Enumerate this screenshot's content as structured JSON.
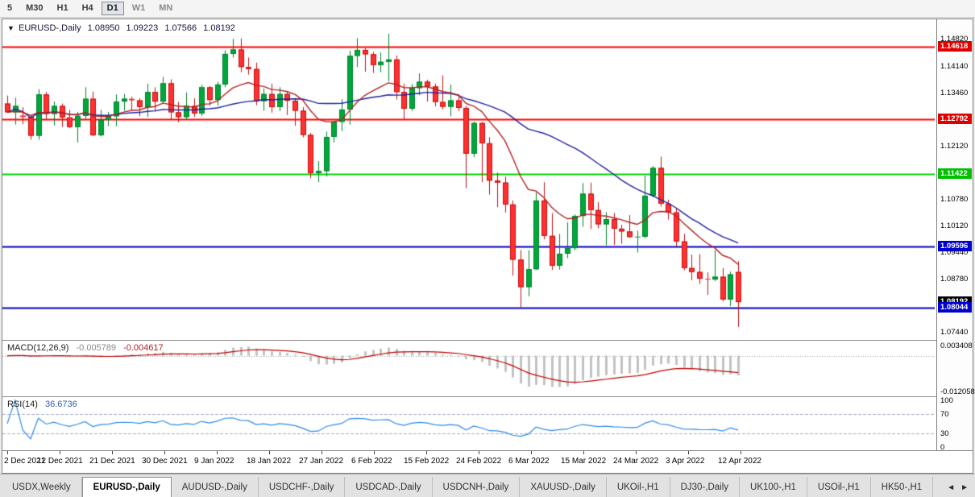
{
  "toolbar": {
    "timeframes": [
      {
        "label": "5",
        "active": false,
        "muted": false
      },
      {
        "label": "M30",
        "active": false,
        "muted": false
      },
      {
        "label": "H1",
        "active": false,
        "muted": false
      },
      {
        "label": "H4",
        "active": false,
        "muted": false
      },
      {
        "label": "D1",
        "active": true,
        "muted": false
      },
      {
        "label": "W1",
        "active": false,
        "muted": true
      },
      {
        "label": "MN",
        "active": false,
        "muted": true
      }
    ]
  },
  "chart": {
    "title": {
      "marker": "▼",
      "symbol": "EURUSD-,Daily",
      "open": "1.08950",
      "high": "1.09223",
      "low": "1.07566",
      "close": "1.08192"
    },
    "macd_label": {
      "name": "MACD(12,26,9)",
      "value": "-0.005789",
      "signal": "-0.004617"
    },
    "rsi_label": {
      "name": "RSI(14)",
      "value": "36.6736"
    }
  },
  "chart_data": {
    "type": "candlestick",
    "symbol": "EURUSD",
    "timeframe": "Daily",
    "current_bar": {
      "open": 1.0895,
      "high": 1.09223,
      "low": 1.07566,
      "close": 1.08192
    },
    "ylim": [
      1.0724,
      1.1531
    ],
    "candles": [
      [
        1.1319,
        1.1339,
        1.1295,
        1.1297
      ],
      [
        1.1297,
        1.1334,
        1.1266,
        1.1313
      ],
      [
        1.1289,
        1.131,
        1.1267,
        1.1285
      ],
      [
        1.1285,
        1.129,
        1.1228,
        1.1238
      ],
      [
        1.1238,
        1.1355,
        1.1228,
        1.1342
      ],
      [
        1.1342,
        1.1348,
        1.128,
        1.1293
      ],
      [
        1.1293,
        1.1324,
        1.1264,
        1.1313
      ],
      [
        1.1313,
        1.1319,
        1.126,
        1.1284
      ],
      [
        1.1284,
        1.1303,
        1.1257,
        1.126
      ],
      [
        1.126,
        1.1298,
        1.1221,
        1.1288
      ],
      [
        1.1288,
        1.136,
        1.128,
        1.1331
      ],
      [
        1.1331,
        1.1349,
        1.1237,
        1.1239
      ],
      [
        1.1239,
        1.1303,
        1.1236,
        1.1278
      ],
      [
        1.1278,
        1.1298,
        1.1262,
        1.1287
      ],
      [
        1.1287,
        1.1342,
        1.1262,
        1.1324
      ],
      [
        1.1324,
        1.1343,
        1.1301,
        1.1331
      ],
      [
        1.1331,
        1.1336,
        1.1302,
        1.1327
      ],
      [
        1.1327,
        1.1332,
        1.1287,
        1.131
      ],
      [
        1.131,
        1.1369,
        1.1285,
        1.1348
      ],
      [
        1.1348,
        1.136,
        1.1299,
        1.1324
      ],
      [
        1.1324,
        1.1386,
        1.1321,
        1.137
      ],
      [
        1.137,
        1.138,
        1.1279,
        1.1297
      ],
      [
        1.1297,
        1.1323,
        1.1272,
        1.1285
      ],
      [
        1.1285,
        1.1347,
        1.128,
        1.1313
      ],
      [
        1.1313,
        1.1332,
        1.1285,
        1.1294
      ],
      [
        1.1294,
        1.1366,
        1.1288,
        1.136
      ],
      [
        1.136,
        1.1363,
        1.1314,
        1.1328
      ],
      [
        1.1328,
        1.1374,
        1.1314,
        1.1367
      ],
      [
        1.1367,
        1.1453,
        1.136,
        1.1444
      ],
      [
        1.1444,
        1.1482,
        1.1435,
        1.1455
      ],
      [
        1.1455,
        1.1483,
        1.1398,
        1.1411
      ],
      [
        1.1411,
        1.1435,
        1.1392,
        1.1406
      ],
      [
        1.1406,
        1.1422,
        1.1315,
        1.1325
      ],
      [
        1.1325,
        1.1357,
        1.1301,
        1.1343
      ],
      [
        1.1343,
        1.1369,
        1.1296,
        1.131
      ],
      [
        1.131,
        1.136,
        1.13,
        1.1343
      ],
      [
        1.1343,
        1.1349,
        1.129,
        1.1326
      ],
      [
        1.1326,
        1.1333,
        1.1263,
        1.1301
      ],
      [
        1.1301,
        1.131,
        1.1234,
        1.124
      ],
      [
        1.124,
        1.1245,
        1.1131,
        1.1144
      ],
      [
        1.1144,
        1.1174,
        1.1121,
        1.1149
      ],
      [
        1.1149,
        1.1248,
        1.1135,
        1.1235
      ],
      [
        1.1235,
        1.1275,
        1.1221,
        1.1273
      ],
      [
        1.1273,
        1.133,
        1.125,
        1.1304
      ],
      [
        1.1304,
        1.1452,
        1.1266,
        1.1439
      ],
      [
        1.1439,
        1.1484,
        1.1411,
        1.1454
      ],
      [
        1.1454,
        1.1459,
        1.1399,
        1.1443
      ],
      [
        1.1443,
        1.1449,
        1.1396,
        1.1416
      ],
      [
        1.1416,
        1.1448,
        1.1398,
        1.1424
      ],
      [
        1.1424,
        1.1495,
        1.1375,
        1.143
      ],
      [
        1.143,
        1.144,
        1.1329,
        1.1348
      ],
      [
        1.1348,
        1.1369,
        1.1278,
        1.1306
      ],
      [
        1.1306,
        1.1368,
        1.13,
        1.1358
      ],
      [
        1.1358,
        1.1395,
        1.134,
        1.1374
      ],
      [
        1.1374,
        1.1379,
        1.1324,
        1.1362
      ],
      [
        1.1362,
        1.1369,
        1.1312,
        1.1323
      ],
      [
        1.1323,
        1.139,
        1.1304,
        1.1311
      ],
      [
        1.1311,
        1.1367,
        1.1287,
        1.1327
      ],
      [
        1.1327,
        1.1342,
        1.13,
        1.1308
      ],
      [
        1.1308,
        1.1313,
        1.1106,
        1.1193
      ],
      [
        1.1193,
        1.1274,
        1.1184,
        1.127
      ],
      [
        1.127,
        1.1273,
        1.1121,
        1.1219
      ],
      [
        1.1219,
        1.1234,
        1.109,
        1.1125
      ],
      [
        1.1125,
        1.1145,
        1.1058,
        1.112
      ],
      [
        1.112,
        1.1135,
        1.1045,
        1.1065
      ],
      [
        1.1065,
        1.1075,
        1.0886,
        1.0926
      ],
      [
        1.0926,
        1.095,
        1.0806,
        1.0857
      ],
      [
        1.0857,
        1.095,
        1.0834,
        1.0902
      ],
      [
        1.0902,
        1.1095,
        1.09,
        1.1075
      ],
      [
        1.1075,
        1.1121,
        1.0977,
        1.0986
      ],
      [
        1.0986,
        1.1043,
        1.09,
        1.0911
      ],
      [
        1.0911,
        1.0991,
        1.0901,
        1.0941
      ],
      [
        1.0941,
        1.102,
        1.093,
        1.0955
      ],
      [
        1.0955,
        1.104,
        1.095,
        1.1036
      ],
      [
        1.1036,
        1.1119,
        1.1009,
        1.1092
      ],
      [
        1.1092,
        1.112,
        1.1003,
        1.1051
      ],
      [
        1.1051,
        1.1071,
        1.1005,
        1.1015
      ],
      [
        1.1015,
        1.1046,
        1.0962,
        1.1028
      ],
      [
        1.1028,
        1.1044,
        1.0963,
        1.1004
      ],
      [
        1.1004,
        1.1014,
        1.0966,
        1.0997
      ],
      [
        1.0997,
        1.1038,
        1.0981,
        1.0983
      ],
      [
        1.0983,
        1.0999,
        1.0944,
        1.0984
      ],
      [
        1.0984,
        1.1137,
        1.098,
        1.1087
      ],
      [
        1.1087,
        1.1162,
        1.1083,
        1.1157
      ],
      [
        1.1157,
        1.1185,
        1.106,
        1.1067
      ],
      [
        1.1067,
        1.1077,
        1.1027,
        1.1045
      ],
      [
        1.1045,
        1.1056,
        1.096,
        1.0972
      ],
      [
        1.0972,
        1.0991,
        1.09,
        1.0905
      ],
      [
        1.0905,
        1.0939,
        1.0874,
        1.0895
      ],
      [
        1.0895,
        1.094,
        1.0865,
        1.0878
      ],
      [
        1.0878,
        1.0894,
        1.0837,
        1.0876
      ],
      [
        1.0876,
        1.095,
        1.0872,
        1.0883
      ],
      [
        1.0883,
        1.0905,
        1.0821,
        1.0826
      ],
      [
        1.0826,
        1.0896,
        1.0809,
        1.0889
      ],
      [
        1.0895,
        1.09223,
        1.07566,
        1.08192
      ]
    ],
    "colors": {
      "up": "#00a83c",
      "up_stroke": "#00802c",
      "down": "#ff3030",
      "down_stroke": "#c41010"
    },
    "moving_averages": [
      {
        "type": "sma",
        "period": 30,
        "color": "#2020a0"
      },
      {
        "type": "ema",
        "period": 13,
        "color": "#b22222"
      }
    ],
    "hlines": [
      {
        "price": 1.14618,
        "color": "#ff0000",
        "width": 2
      },
      {
        "price": 1.12792,
        "color": "#ff0000",
        "width": 2
      },
      {
        "price": 1.11422,
        "color": "#00d300",
        "width": 2
      },
      {
        "price": 1.09596,
        "color": "#0000c8",
        "width": 2
      },
      {
        "price": 1.08044,
        "color": "#0000c8",
        "width": 2
      }
    ],
    "price_axis_labels": [
      "1.14820",
      "1.14140",
      "1.13460",
      "1.12120",
      "1.10780",
      "1.10120",
      "1.09440",
      "1.08780",
      "1.07440"
    ],
    "price_badges": [
      {
        "text": "1.14618",
        "price": 1.14618,
        "color": "#e00000"
      },
      {
        "text": "1.12792",
        "price": 1.12792,
        "color": "#e00000"
      },
      {
        "text": "1.11422",
        "price": 1.11422,
        "color": "#00c000"
      },
      {
        "text": "1.09596",
        "price": 1.09596,
        "color": "#0000cc"
      },
      {
        "text": "1.08192",
        "price": 1.08192,
        "color": "#000000"
      },
      {
        "text": "1.08044",
        "price": 1.08044,
        "color": "#0000cc"
      }
    ],
    "macd": {
      "fast": 12,
      "slow": 26,
      "signal_period": 9,
      "value": -0.005789,
      "signal_value": -0.004617,
      "ylim": [
        -0.0136,
        0.005
      ],
      "hist_color": "#c3c3c3",
      "signal_color": "#c00000",
      "axis_labels": [
        {
          "text": "0.003408",
          "value": 0.003408
        },
        {
          "text": "-0.012058",
          "value": -0.012058
        }
      ]
    },
    "rsi": {
      "period": 14,
      "value": 36.6736,
      "color": "#2e8be6",
      "levels": [
        70,
        30
      ],
      "ylim": [
        0,
        100
      ],
      "axis_labels": [
        {
          "text": "100",
          "value": 100
        },
        {
          "text": "70",
          "value": 70
        },
        {
          "text": "30",
          "value": 30
        },
        {
          "text": "0",
          "value": 0
        }
      ]
    },
    "time_axis_labels": [
      "2 Dec 2021",
      "12 Dec 2021",
      "21 Dec 2021",
      "30 Dec 2021",
      "9 Jan 2022",
      "18 Jan 2022",
      "27 Jan 2022",
      "6 Feb 2022",
      "15 Feb 2022",
      "24 Feb 2022",
      "6 Mar 2022",
      "15 Mar 2022",
      "24 Mar 2022",
      "3 Apr 2022",
      "12 Apr 2022"
    ]
  },
  "tabs": {
    "items": [
      {
        "label": "USDX,Weekly",
        "active": false
      },
      {
        "label": "EURUSD-,Daily",
        "active": true
      },
      {
        "label": "AUDUSD-,Daily",
        "active": false
      },
      {
        "label": "USDCHF-,Daily",
        "active": false
      },
      {
        "label": "USDCAD-,Daily",
        "active": false
      },
      {
        "label": "USDCNH-,Daily",
        "active": false
      },
      {
        "label": "XAUUSD-,Daily",
        "active": false
      },
      {
        "label": "UKOil-,H1",
        "active": false
      },
      {
        "label": "DJ30-,Daily",
        "active": false
      },
      {
        "label": "UK100-,H1",
        "active": false
      },
      {
        "label": "USOil-,H1",
        "active": false
      },
      {
        "label": "HK50-,H1",
        "active": false
      }
    ],
    "scroll_left": "◄",
    "scroll_right": "►"
  }
}
